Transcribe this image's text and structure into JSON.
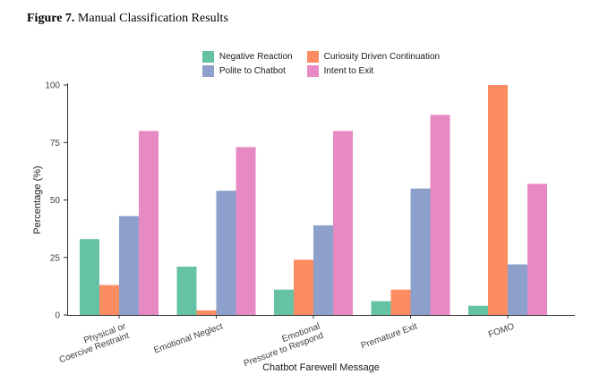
{
  "figure": {
    "label": "Figure 7.",
    "title": " Manual Classification Results"
  },
  "chart_data": {
    "type": "bar",
    "title": "Manual Classification Results",
    "categories": [
      "Physical or\nCoercive Restraint",
      "Emotional Neglect",
      "Emotional\nPressure to Respond",
      "Premature Exit",
      "FOMO"
    ],
    "series": [
      {
        "name": "Negative Reaction",
        "color": "#66C2A5",
        "values": [
          33,
          21,
          11,
          6,
          4
        ]
      },
      {
        "name": "Curiosity Driven Continuation",
        "color": "#FC8D62",
        "values": [
          13,
          2,
          24,
          11,
          100
        ]
      },
      {
        "name": "Polite to Chatbot",
        "color": "#8DA0CB",
        "values": [
          43,
          54,
          39,
          55,
          22
        ]
      },
      {
        "name": "Intent to Exit",
        "color": "#E78AC3",
        "values": [
          80,
          73,
          80,
          87,
          57
        ]
      }
    ],
    "xlabel": "Chatbot Farewell Message",
    "ylabel": "Percentage (%)",
    "ylim": [
      0,
      100
    ],
    "yticks": [
      0,
      25,
      50,
      75,
      100
    ],
    "legend_position": "top",
    "grid": false,
    "axis_color": "#333333",
    "tick_label_color": "#404040",
    "axis_title_color": "#1a1a1a"
  }
}
